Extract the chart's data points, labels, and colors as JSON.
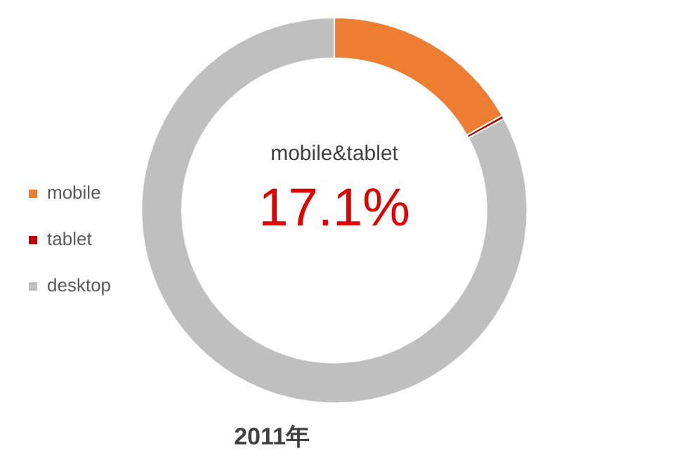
{
  "chart_data": {
    "type": "donut",
    "title": "2011年",
    "categories": [
      "mobile",
      "tablet",
      "desktop"
    ],
    "values": [
      16.8,
      0.3,
      82.9
    ],
    "colors": [
      "#ed7d31",
      "#c00000",
      "#bfbfbf"
    ],
    "legend": "left",
    "annotations": [
      "mobile&tablet",
      "17.1%"
    ]
  }
}
